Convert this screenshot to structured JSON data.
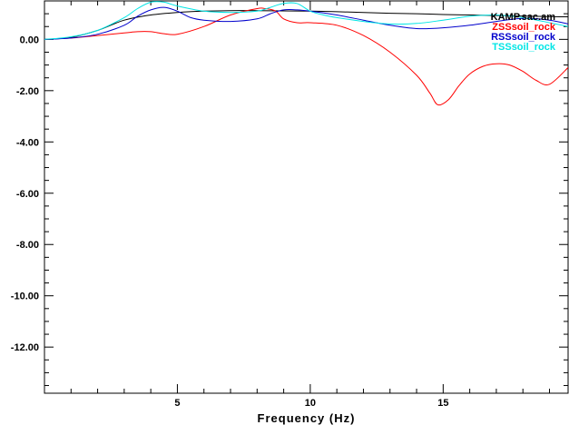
{
  "chart_data": {
    "type": "line",
    "title": "",
    "xlabel": "Frequency (Hz)",
    "ylabel": "",
    "xlim": [
      0,
      19.7
    ],
    "ylim": [
      -13.8,
      1.5
    ],
    "x_ticks": [
      5,
      10,
      15
    ],
    "x_tick_labels": [
      "5",
      "10",
      "15"
    ],
    "y_ticks": [
      0,
      -2,
      -4,
      -6,
      -8,
      -10,
      -12
    ],
    "y_tick_labels": [
      "0.00",
      "-2.00",
      "-4.00",
      "-6.00",
      "-8.00",
      "-10.00",
      "-12.00"
    ],
    "grid": false,
    "legend_position": "top-right",
    "series": [
      {
        "name": "KAMP.sac.am",
        "color": "#000000",
        "x": [
          0,
          1,
          2,
          3,
          4,
          5,
          6,
          7,
          8,
          9,
          10,
          11,
          12,
          13,
          14,
          15,
          16,
          17,
          18,
          19,
          19.7
        ],
        "y": [
          0,
          0.08,
          0.35,
          0.75,
          0.95,
          1.05,
          1.1,
          1.12,
          1.12,
          1.11,
          1.1,
          1.08,
          1.05,
          1.02,
          1.0,
          0.97,
          0.95,
          0.93,
          0.91,
          0.89,
          0.88
        ]
      },
      {
        "name": "ZSSsoil_rock",
        "color": "#ff0000",
        "x": [
          0,
          1,
          2,
          3,
          3.5,
          4,
          4.5,
          5,
          6,
          7,
          8,
          8.3,
          8.7,
          9,
          9.5,
          10,
          11,
          12,
          13,
          14,
          14.5,
          14.8,
          15.2,
          15.6,
          16,
          16.5,
          17,
          17.5,
          18,
          18.5,
          19,
          19.7
        ],
        "y": [
          0,
          0.05,
          0.15,
          0.25,
          0.3,
          0.3,
          0.22,
          0.2,
          0.5,
          0.95,
          1.2,
          1.2,
          1.1,
          0.8,
          0.65,
          0.65,
          0.55,
          0.15,
          -0.5,
          -1.4,
          -2.1,
          -2.55,
          -2.35,
          -1.8,
          -1.35,
          -1.05,
          -0.95,
          -1.0,
          -1.25,
          -1.6,
          -1.75,
          -1.1
        ]
      },
      {
        "name": "RSSsoil_rock",
        "color": "#0000cc",
        "x": [
          0,
          1,
          2,
          3,
          3.5,
          4,
          4.5,
          5,
          5.5,
          6,
          7,
          8,
          8.5,
          9,
          9.5,
          10,
          11,
          12,
          13,
          14,
          15,
          16,
          17,
          18,
          19,
          19.7
        ],
        "y": [
          0,
          0.05,
          0.2,
          0.55,
          0.9,
          1.15,
          1.25,
          1.1,
          0.85,
          0.75,
          0.7,
          0.8,
          1.0,
          1.15,
          1.15,
          1.1,
          0.95,
          0.75,
          0.55,
          0.42,
          0.45,
          0.55,
          0.7,
          0.82,
          0.75,
          0.6
        ]
      },
      {
        "name": "TSSsoil_rock",
        "color": "#00e5e5",
        "x": [
          0,
          1,
          2,
          3,
          3.5,
          4,
          4.5,
          5,
          6,
          7,
          8,
          8.5,
          9,
          9.5,
          10,
          10.5,
          11,
          12,
          13,
          14,
          15,
          16,
          17,
          18,
          19,
          19.7
        ],
        "y": [
          0,
          0.1,
          0.35,
          0.85,
          1.2,
          1.45,
          1.45,
          1.3,
          1.1,
          1.05,
          1.1,
          1.25,
          1.4,
          1.4,
          1.1,
          0.95,
          0.85,
          0.7,
          0.6,
          0.62,
          0.75,
          0.9,
          0.95,
          0.85,
          0.65,
          0.5
        ]
      }
    ]
  }
}
